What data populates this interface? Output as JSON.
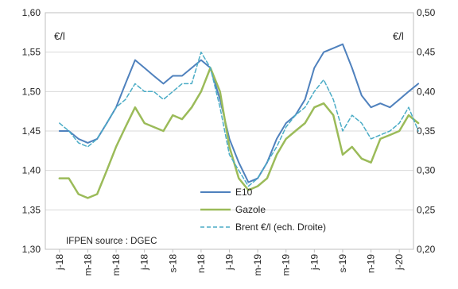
{
  "chart_data": {
    "type": "line",
    "unit_left": "€/l",
    "unit_right": "€/l",
    "source_note": "IFPEN source : DGEC",
    "x_labels": [
      "j-18",
      "m-18",
      "m-18",
      "j-18",
      "s-18",
      "n-18",
      "j-19",
      "m-19",
      "m-19",
      "j-19",
      "s-19",
      "n-19",
      "j-20"
    ],
    "y_left": {
      "min": 1.3,
      "max": 1.6,
      "ticks": [
        "1,30",
        "1,35",
        "1,40",
        "1,45",
        "1,50",
        "1,55",
        "1,60"
      ]
    },
    "y_right": {
      "min": 0.2,
      "max": 0.5,
      "ticks": [
        "0,20",
        "0,25",
        "0,30",
        "0,35",
        "0,40",
        "0,45",
        "0,50"
      ]
    },
    "grid": "horizontal",
    "legend_position": "bottom-center",
    "series": [
      {
        "name": "E10",
        "axis": "left",
        "color": "#4f81bd",
        "style": "solid",
        "x": [
          0,
          0.33,
          0.67,
          1.0,
          1.33,
          1.67,
          2.0,
          2.33,
          2.67,
          3.0,
          3.33,
          3.67,
          4.0,
          4.33,
          4.67,
          5.0,
          5.33,
          5.67,
          6.0,
          6.33,
          6.67,
          7.0,
          7.33,
          7.67,
          8.0,
          8.33,
          8.67,
          9.0,
          9.33,
          9.67,
          10.0,
          10.33,
          10.67,
          11.0,
          11.33,
          11.67,
          12.0,
          12.33,
          12.67
        ],
        "values": [
          1.45,
          1.45,
          1.44,
          1.435,
          1.44,
          1.46,
          1.48,
          1.51,
          1.54,
          1.53,
          1.52,
          1.51,
          1.52,
          1.52,
          1.53,
          1.54,
          1.53,
          1.49,
          1.44,
          1.41,
          1.385,
          1.39,
          1.41,
          1.44,
          1.46,
          1.47,
          1.49,
          1.53,
          1.55,
          1.555,
          1.56,
          1.53,
          1.495,
          1.48,
          1.485,
          1.48,
          1.49,
          1.5,
          1.51
        ]
      },
      {
        "name": "Gazole",
        "axis": "left",
        "color": "#9bbb59",
        "style": "solid",
        "x": [
          0,
          0.33,
          0.67,
          1.0,
          1.33,
          1.67,
          2.0,
          2.33,
          2.67,
          3.0,
          3.33,
          3.67,
          4.0,
          4.33,
          4.67,
          5.0,
          5.33,
          5.67,
          6.0,
          6.33,
          6.67,
          7.0,
          7.33,
          7.67,
          8.0,
          8.33,
          8.67,
          9.0,
          9.33,
          9.67,
          10.0,
          10.33,
          10.67,
          11.0,
          11.33,
          11.67,
          12.0,
          12.33,
          12.67
        ],
        "values": [
          1.39,
          1.39,
          1.37,
          1.365,
          1.37,
          1.4,
          1.43,
          1.455,
          1.48,
          1.46,
          1.455,
          1.45,
          1.47,
          1.465,
          1.48,
          1.5,
          1.53,
          1.5,
          1.43,
          1.39,
          1.375,
          1.38,
          1.39,
          1.42,
          1.44,
          1.45,
          1.46,
          1.48,
          1.485,
          1.47,
          1.42,
          1.43,
          1.415,
          1.41,
          1.44,
          1.445,
          1.45,
          1.47,
          1.46
        ]
      },
      {
        "name": "Brent €/l (ech. Droite)",
        "axis": "right",
        "color": "#4bacc6",
        "style": "dashed",
        "x": [
          0,
          0.33,
          0.67,
          1.0,
          1.33,
          1.67,
          2.0,
          2.33,
          2.67,
          3.0,
          3.33,
          3.67,
          4.0,
          4.33,
          4.67,
          5.0,
          5.33,
          5.67,
          6.0,
          6.33,
          6.67,
          7.0,
          7.33,
          7.67,
          8.0,
          8.33,
          8.67,
          9.0,
          9.33,
          9.67,
          10.0,
          10.33,
          10.67,
          11.0,
          11.33,
          11.67,
          12.0,
          12.33,
          12.67
        ],
        "values": [
          0.36,
          0.35,
          0.335,
          0.33,
          0.34,
          0.36,
          0.38,
          0.39,
          0.41,
          0.4,
          0.4,
          0.39,
          0.4,
          0.41,
          0.41,
          0.45,
          0.43,
          0.38,
          0.32,
          0.3,
          0.28,
          0.29,
          0.31,
          0.33,
          0.355,
          0.37,
          0.38,
          0.4,
          0.415,
          0.39,
          0.35,
          0.37,
          0.36,
          0.34,
          0.345,
          0.35,
          0.36,
          0.38,
          0.35
        ]
      }
    ]
  }
}
